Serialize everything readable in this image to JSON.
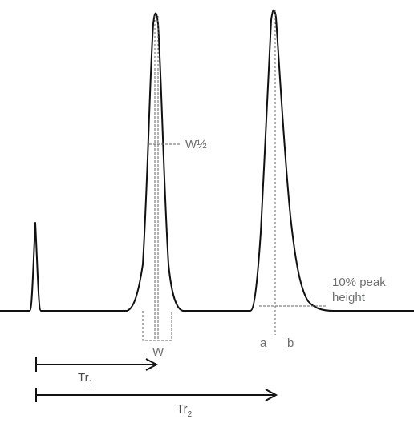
{
  "labels": {
    "w_half": "W½",
    "w": "W",
    "a": "a",
    "b": "b",
    "peak_line1": "10% peak",
    "peak_line2": "height",
    "tr1_base": "Tr",
    "tr1_sub": "1",
    "tr2_base": "Tr",
    "tr2_sub": "2"
  },
  "colors": {
    "trace": "#111111",
    "guide": "#666666",
    "label": "#6d6e70"
  }
}
